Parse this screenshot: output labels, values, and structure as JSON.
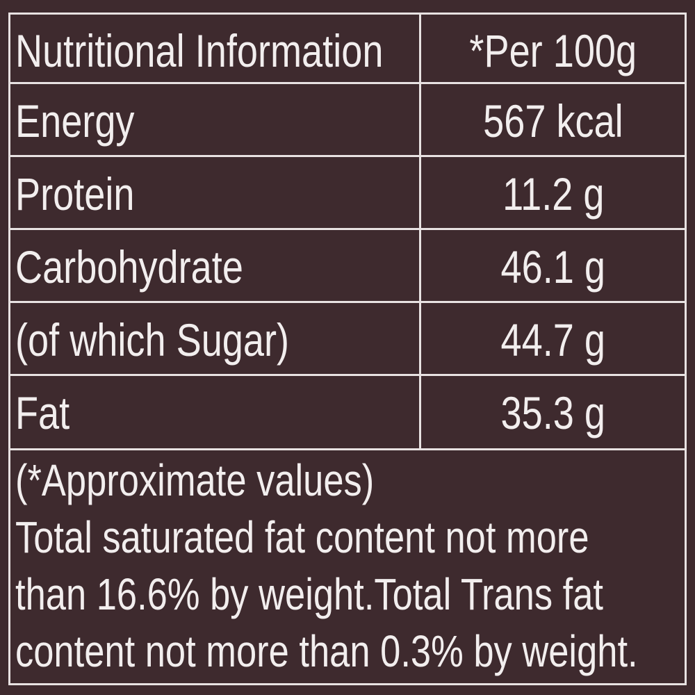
{
  "table": {
    "header": [
      "Nutritional Information",
      "*Per 100g"
    ],
    "rows": [
      [
        "Energy",
        "567 kcal"
      ],
      [
        "Protein",
        "11.2 g"
      ],
      [
        "Carbohydrate",
        "46.1 g"
      ],
      [
        "(of which Sugar)",
        "44.7 g"
      ],
      [
        "Fat",
        "35.3 g"
      ]
    ]
  },
  "footnote": {
    "lines": [
      "(*Approximate values)",
      "Total saturated fat content not more",
      "than 16.6% by weight.Total Trans fat",
      "content not more than 0.3% by weight."
    ]
  }
}
